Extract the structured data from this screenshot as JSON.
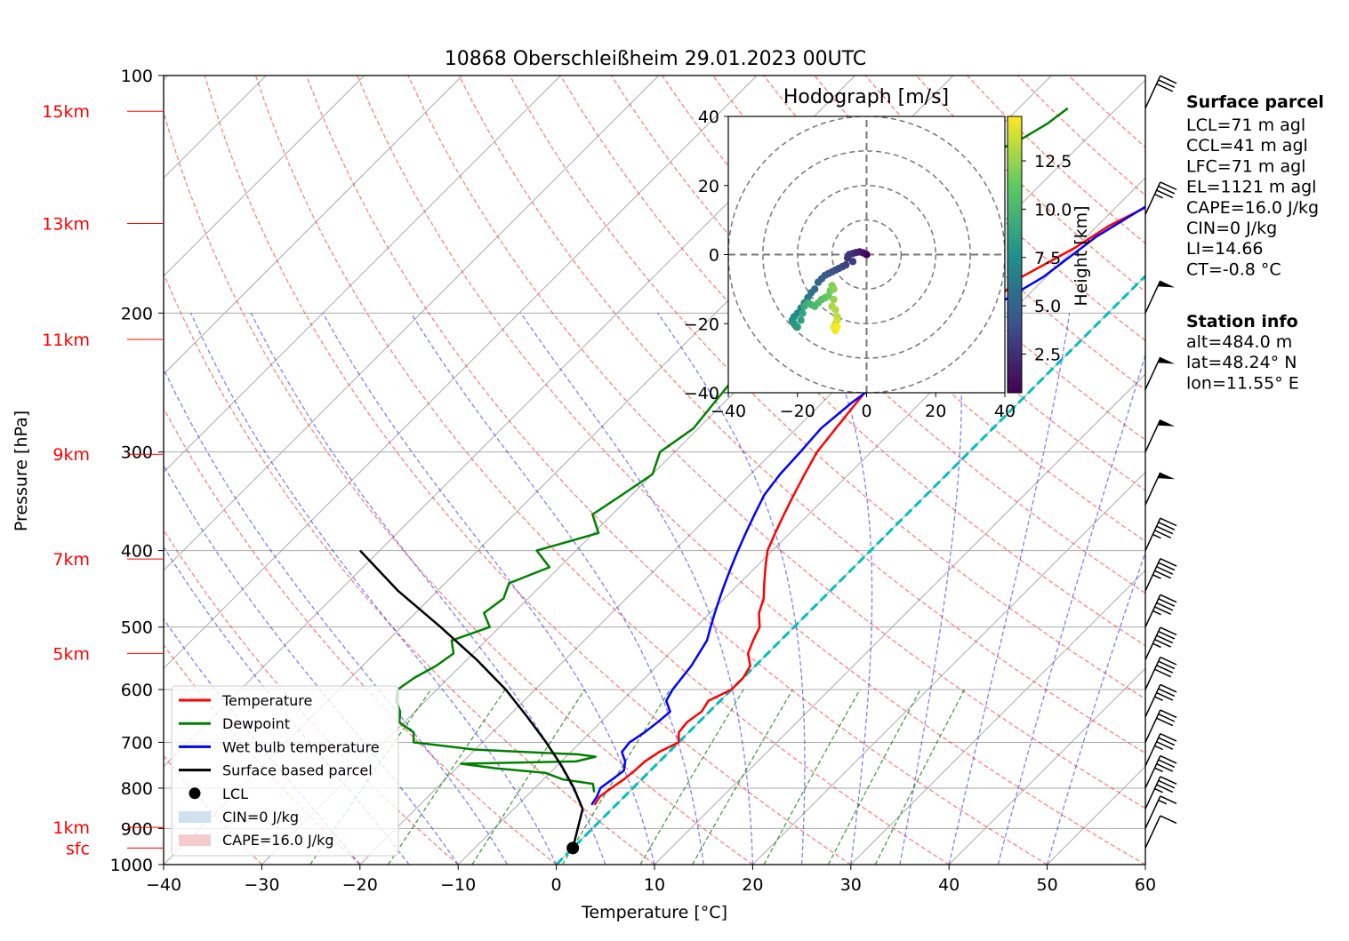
{
  "figure": {
    "title": "10868 Oberschleißheim 29.01.2023 00UTC"
  },
  "chart_data": [
    {
      "type": "line",
      "subtype": "skew-t log-p diagram",
      "title": "10868 Oberschleißheim 29.01.2023 00UTC",
      "xlabel": "Temperature [°C]",
      "ylabel": "Pressure [hPa]",
      "xlim": [
        -40,
        60
      ],
      "ylim": [
        1000,
        100
      ],
      "y_scale": "log",
      "grid": true,
      "legend_position": "lower-left",
      "x_ticks": [
        "−40",
        "−30",
        "−20",
        "−10",
        "0",
        "10",
        "20",
        "30",
        "40",
        "50",
        "60"
      ],
      "x_tick_values": [
        -40,
        -30,
        -20,
        -10,
        0,
        10,
        20,
        30,
        40,
        50,
        60
      ],
      "y_ticks": [
        "100",
        "200",
        "300",
        "400",
        "500",
        "600",
        "700",
        "800",
        "900",
        "1000"
      ],
      "y_tick_values": [
        100,
        200,
        300,
        400,
        500,
        600,
        700,
        800,
        900,
        1000
      ],
      "height_labels": [
        {
          "text": "sfc",
          "p": 953
        },
        {
          "text": "1km",
          "p": 897
        },
        {
          "text": "5km",
          "p": 540
        },
        {
          "text": "7km",
          "p": 410
        },
        {
          "text": "9km",
          "p": 302
        },
        {
          "text": "11km",
          "p": 216
        },
        {
          "text": "13km",
          "p": 154
        },
        {
          "text": "15km",
          "p": 111
        }
      ],
      "series": [
        {
          "name": "Temperature",
          "color": "#ff0000",
          "x": [
            -2.2,
            -2.5,
            -2.2,
            -1.8,
            -1.6,
            -1.5,
            -1.0,
            0.0,
            -1.0,
            -1.2,
            -0.8,
            -1.2,
            0.0,
            0.0,
            -0.5,
            -2.0,
            -2.8,
            -3.5,
            -5.0,
            -6.0,
            -7.5,
            -9.0,
            -10.5,
            -11.5,
            -12.5,
            -13.5,
            -14.5,
            -15.5,
            -16.0,
            -16.5,
            -17.0,
            -17.2,
            -17.3,
            -16.8,
            -16.0,
            -12.8,
            -12.5,
            -10.0,
            -8.8,
            -6.5,
            -4.8,
            -4.2,
            -3.2
          ],
          "y": [
            840,
            820,
            800,
            780,
            760,
            740,
            720,
            700,
            680,
            660,
            640,
            620,
            600,
            580,
            560,
            540,
            520,
            500,
            480,
            460,
            440,
            420,
            400,
            380,
            360,
            340,
            320,
            300,
            280,
            260,
            240,
            230,
            220,
            210,
            200,
            190,
            180,
            165,
            155,
            145,
            135,
            125,
            115
          ]
        },
        {
          "name": "Dewpoint",
          "color": "#008000",
          "x": [
            -3.5,
            -4.5,
            -8.0,
            -10.5,
            -16.0,
            -20.0,
            -8.5,
            -7.0,
            -9.0,
            -20.0,
            -27.0,
            -28.0,
            -30.5,
            -31.5,
            -33.0,
            -34.0,
            -33.5,
            -32.5,
            -32.0,
            -33.5,
            -31.0,
            -33.0,
            -32.5,
            -33.5,
            -31.0,
            -34.0,
            -29.5,
            -32.0,
            -31.0,
            -30.0,
            -31.5,
            -30.5,
            -31.0,
            -31.5,
            -32.0,
            -33.0,
            -33.5,
            -32.5,
            -30.0,
            -30.5,
            -29.5,
            -28.5,
            -27.5,
            -27.5,
            -28.0,
            -26.5,
            -25.5,
            -25.0
          ],
          "y": [
            810,
            790,
            780,
            765,
            755,
            745,
            740,
            730,
            725,
            715,
            700,
            680,
            660,
            640,
            620,
            600,
            580,
            560,
            540,
            520,
            500,
            480,
            460,
            440,
            420,
            400,
            380,
            360,
            340,
            320,
            300,
            280,
            260,
            240,
            220,
            210,
            200,
            190,
            180,
            170,
            160,
            150,
            140,
            130,
            125,
            120,
            115,
            110
          ]
        },
        {
          "name": "Wet bulb temperature",
          "color": "#0000ff",
          "x": [
            -2.5,
            -2.8,
            -3.3,
            -3.0,
            -2.7,
            -3.5,
            -4.8,
            -5.0,
            -4.5,
            -4.2,
            -4.0,
            -5.5,
            -6.0,
            -6.5,
            -7.5,
            -8.5,
            -9.5,
            -10.5,
            -11.5,
            -12.5,
            -13.5,
            -14.5,
            -15.5,
            -16.5,
            -17.0,
            -17.2,
            -17.5,
            -17.0,
            -16.0,
            -13.0,
            -12.8,
            -10.3,
            -9.0,
            -6.8,
            -5.0,
            -4.3,
            -3.3
          ],
          "y": [
            840,
            820,
            800,
            780,
            760,
            740,
            720,
            700,
            680,
            660,
            640,
            620,
            600,
            560,
            520,
            500,
            480,
            460,
            440,
            420,
            400,
            380,
            360,
            340,
            320,
            300,
            280,
            260,
            240,
            220,
            200,
            180,
            160,
            145,
            135,
            125,
            115
          ]
        },
        {
          "name": "Surface based parcel",
          "color": "#000000",
          "x": [
            0.0,
            -1.5,
            -3.0,
            -6.0,
            -9.5,
            -13.5,
            -18.0,
            -23.0,
            -29.0,
            -36.0,
            -44.0,
            -52.0
          ],
          "y": [
            953,
            900,
            850,
            800,
            750,
            700,
            650,
            600,
            550,
            500,
            450,
            400
          ]
        }
      ],
      "lcl": {
        "name": "LCL",
        "t": 0.0,
        "p": 953
      },
      "legend": [
        {
          "label": "Temperature",
          "color": "#ff0000",
          "kind": "line"
        },
        {
          "label": "Dewpoint",
          "color": "#008000",
          "kind": "line"
        },
        {
          "label": "Wet bulb temperature",
          "color": "#0000ff",
          "kind": "line"
        },
        {
          "label": "Surface based parcel",
          "color": "#000000",
          "kind": "line"
        },
        {
          "label": "LCL",
          "color": "#000000",
          "kind": "dot"
        },
        {
          "label": "CIN=0 J/kg",
          "color": "#cfe0f0",
          "kind": "patch"
        },
        {
          "label": "CAPE=16.0 J/kg",
          "color": "#f4cccc",
          "kind": "patch"
        }
      ],
      "wind_barbs": [
        {
          "p": 953,
          "speed_kt": 10
        },
        {
          "p": 900,
          "speed_kt": 15
        },
        {
          "p": 850,
          "speed_kt": 35
        },
        {
          "p": 800,
          "speed_kt": 35
        },
        {
          "p": 750,
          "speed_kt": 35
        },
        {
          "p": 700,
          "speed_kt": 30
        },
        {
          "p": 650,
          "speed_kt": 35
        },
        {
          "p": 600,
          "speed_kt": 40
        },
        {
          "p": 550,
          "speed_kt": 45
        },
        {
          "p": 500,
          "speed_kt": 45
        },
        {
          "p": 450,
          "speed_kt": 45
        },
        {
          "p": 400,
          "speed_kt": 45
        },
        {
          "p": 350,
          "speed_kt": 50
        },
        {
          "p": 300,
          "speed_kt": 50
        },
        {
          "p": 250,
          "speed_kt": 50
        },
        {
          "p": 200,
          "speed_kt": 50
        },
        {
          "p": 150,
          "speed_kt": 35
        },
        {
          "p": 110,
          "speed_kt": 30
        }
      ]
    },
    {
      "type": "scatter",
      "subtype": "hodograph",
      "title": "Hodograph [m/s]",
      "xlim": [
        -40,
        40
      ],
      "ylim": [
        -40,
        40
      ],
      "x_ticks": [
        "−40",
        "−20",
        "0",
        "20",
        "40"
      ],
      "x_tick_values": [
        -40,
        -20,
        0,
        20,
        40
      ],
      "y_ticks": [
        "−40",
        "−20",
        "0",
        "20",
        "40"
      ],
      "y_tick_values": [
        -40,
        -20,
        0,
        20,
        40
      ],
      "rings": [
        10,
        20,
        30,
        40
      ],
      "colorbar": {
        "label": "Height [km]",
        "colormap": "viridis",
        "range": [
          0.5,
          14.8
        ],
        "ticks": [
          "2.5",
          "5.0",
          "7.5",
          "10.0",
          "12.5"
        ],
        "tick_values": [
          2.5,
          5.0,
          7.5,
          10.0,
          12.5
        ]
      },
      "points": {
        "u": [
          0,
          -1,
          -2,
          -3,
          -4,
          -5,
          -5.5,
          -4,
          -6,
          -7,
          -8,
          -9,
          -10,
          -11,
          -12,
          -13,
          -14,
          -15,
          -16,
          -17,
          -18,
          -19,
          -20,
          -21,
          -21.5,
          -21,
          -20,
          -19,
          -18.5,
          -18,
          -17,
          -16,
          -15,
          -14,
          -13,
          -12,
          -11,
          -10.5,
          -10,
          -9.5,
          -9.5,
          -10,
          -9,
          -8.5,
          -8.5,
          -9,
          -9.5,
          -9,
          -8.5
        ],
        "v": [
          0,
          0.5,
          0.8,
          0.6,
          0.3,
          0,
          -1,
          -2,
          -3,
          -3.5,
          -4,
          -4.5,
          -5,
          -5.5,
          -6,
          -7,
          -8,
          -10,
          -11,
          -12.5,
          -14,
          -15.5,
          -17,
          -18,
          -19,
          -20,
          -21,
          -19,
          -17,
          -15,
          -14,
          -14.5,
          -15,
          -14,
          -13,
          -12.5,
          -12,
          -10.5,
          -9,
          -10,
          -13,
          -15,
          -16,
          -18,
          -19,
          -20,
          -21,
          -22,
          -21
        ],
        "h": [
          0.5,
          1.0,
          1.5,
          2.0,
          2.3,
          2.6,
          2.9,
          3.1,
          3.3,
          3.5,
          3.7,
          3.9,
          4.1,
          4.4,
          4.7,
          5.0,
          5.3,
          5.6,
          5.9,
          6.2,
          6.5,
          6.8,
          7.1,
          7.4,
          7.7,
          8.0,
          8.3,
          8.6,
          8.9,
          9.2,
          9.5,
          9.8,
          10.1,
          10.4,
          10.7,
          11.0,
          11.3,
          11.6,
          11.9,
          12.2,
          12.5,
          12.8,
          13.1,
          13.4,
          13.7,
          14.0,
          14.3,
          14.5,
          14.8
        ]
      }
    }
  ],
  "info_panel": {
    "surface_heading": "Surface parcel",
    "surface_lines": [
      "LCL=71 m agl",
      "CCL=41 m agl",
      "LFC=71 m agl",
      "EL=1121 m agl",
      "CAPE=16.0 J/kg",
      "CIN=0 J/kg",
      "LI=14.66",
      "CT=-0.8 °C"
    ],
    "station_heading": "Station info",
    "station_lines": [
      "alt=484.0 m",
      "lat=48.24° N",
      "lon=11.55° E"
    ]
  }
}
